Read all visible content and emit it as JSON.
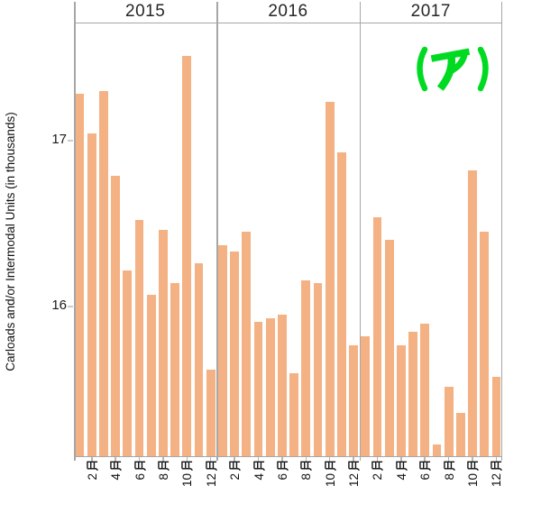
{
  "chart_data": {
    "type": "bar",
    "title": "",
    "ylabel": "Carloads and/or Intermodal Units (in thousands)",
    "ylim": [
      15.1,
      17.71
    ],
    "ytick_values": [
      17,
      16
    ],
    "ytick_labels": [
      "17",
      "16"
    ],
    "x_tick_labels": [
      "2月",
      "4月",
      "6月",
      "8月",
      "10月",
      "12月"
    ],
    "labeled_month_numbers": [
      2,
      4,
      6,
      8,
      10,
      12
    ],
    "month_suffix": "月",
    "grid": false,
    "legend": "none",
    "bar_color": "#F4B183",
    "axis_line_color": "#a6a6a6",
    "panels": [
      {
        "year": "2015",
        "values": [
          17.28,
          17.04,
          17.3,
          16.79,
          16.22,
          16.52,
          16.07,
          16.46,
          16.14,
          17.51,
          16.26,
          15.62
        ]
      },
      {
        "year": "2016",
        "values": [
          16.37,
          16.33,
          16.45,
          15.91,
          15.93,
          15.95,
          15.6,
          16.16,
          16.14,
          17.23,
          16.93,
          15.77
        ]
      },
      {
        "year": "2017",
        "values": [
          15.82,
          16.54,
          16.4,
          15.77,
          15.85,
          15.9,
          15.17,
          15.52,
          15.36,
          16.82,
          16.45,
          15.58
        ]
      }
    ],
    "annotation": {
      "text": "(ア)",
      "color": "#00DB22"
    }
  }
}
